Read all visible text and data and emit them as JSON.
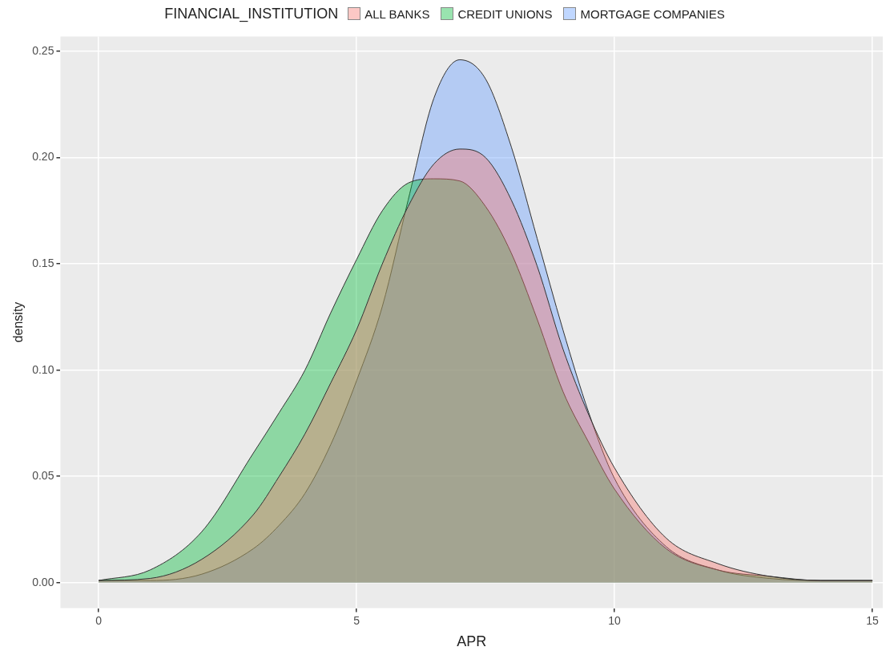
{
  "chart_data": {
    "type": "area",
    "xlabel": "APR",
    "ylabel": "density",
    "legend_title": "FINANCIAL_INSTITUTION",
    "legend": "top",
    "x": [
      0,
      1,
      2,
      3,
      3.5,
      4,
      4.5,
      5,
      5.5,
      6,
      6.5,
      7,
      7.5,
      8,
      8.5,
      9,
      9.5,
      10,
      11,
      12,
      13,
      14,
      15
    ],
    "series": [
      {
        "name": "ALL BANKS",
        "color": "#f8766d",
        "values": [
          0.001,
          0.002,
          0.011,
          0.032,
          0.05,
          0.07,
          0.094,
          0.119,
          0.15,
          0.177,
          0.197,
          0.204,
          0.2,
          0.18,
          0.149,
          0.11,
          0.079,
          0.054,
          0.021,
          0.009,
          0.003,
          0.001,
          0.001
        ]
      },
      {
        "name": "CREDIT UNIONS",
        "color": "#00ba38",
        "values": [
          0.001,
          0.006,
          0.024,
          0.061,
          0.08,
          0.1,
          0.127,
          0.152,
          0.175,
          0.188,
          0.19,
          0.189,
          0.177,
          0.155,
          0.124,
          0.09,
          0.066,
          0.044,
          0.016,
          0.006,
          0.003,
          0.001,
          0.001
        ]
      },
      {
        "name": "MORTGAGE COMPANIES",
        "color": "#619cff",
        "values": [
          0.001,
          0.001,
          0.004,
          0.016,
          0.027,
          0.042,
          0.065,
          0.095,
          0.13,
          0.18,
          0.228,
          0.246,
          0.237,
          0.205,
          0.162,
          0.119,
          0.08,
          0.049,
          0.017,
          0.006,
          0.002,
          0.001,
          0.001
        ]
      }
    ],
    "xlim": [
      -0.74,
      15.2
    ],
    "xticks": [
      0,
      5,
      10,
      15
    ],
    "ylim": [
      -0.012,
      0.257
    ],
    "yticks": [
      {
        "value": 0,
        "label": "0.00"
      },
      {
        "value": 0.05,
        "label": "0.05"
      },
      {
        "value": 0.1,
        "label": "0.10"
      },
      {
        "value": 0.15,
        "label": "0.15"
      },
      {
        "value": 0.2,
        "label": "0.20"
      },
      {
        "value": 0.25,
        "label": "0.25"
      }
    ],
    "grid": true
  }
}
